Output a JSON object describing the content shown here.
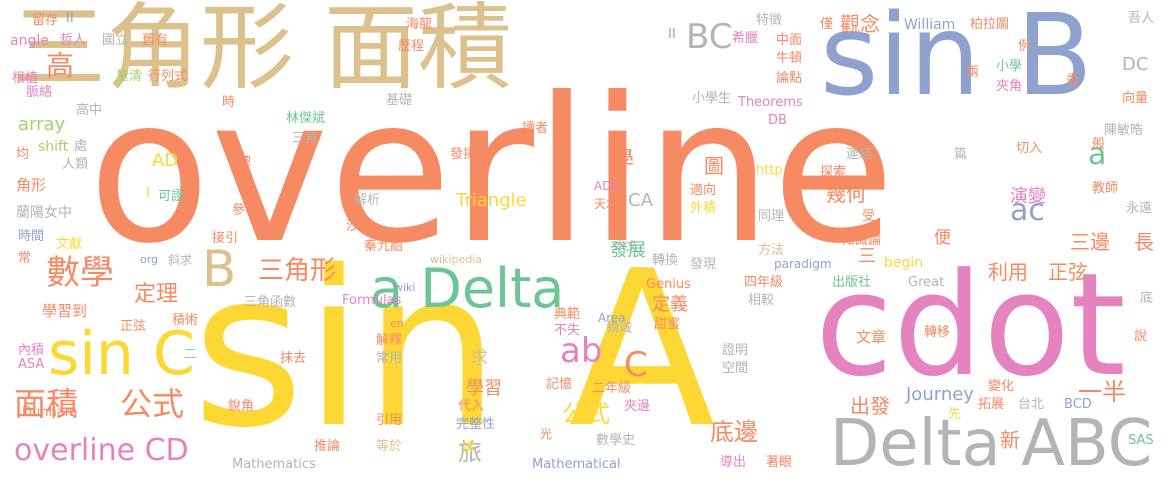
{
  "palette": {
    "orange": "#f58a63",
    "yellow": "#fdd835",
    "tan": "#dcc18c",
    "blue": "#8fa2cf",
    "pink": "#e582c0",
    "green": "#6cc596",
    "gray": "#b4b4b4",
    "lime": "#a7d168"
  },
  "words": {
    "overline": "overline",
    "sinA": "sin A",
    "cdot": "cdot",
    "sanjiaoxing_mianji": "三角形 面積",
    "sinB": "sin B",
    "deltaABC": "Delta ABC",
    "aDelta": "a Delta",
    "sinC": "sin C",
    "shuxue": "數學",
    "mianji": "面積",
    "gongshi": "公式",
    "overlineCD": "overline CD",
    "B": "B",
    "sanjiaoxing": "三角形",
    "dingli": "定理",
    "ab": "ab",
    "ac": "ac",
    "a": "a",
    "BC": "BC",
    "gao": "高",
    "didian": "底邊",
    "gongshi2": "公式",
    "banyi": "一半",
    "sanbian": "三邊",
    "chang": "長",
    "zhengxian": "正弦",
    "liyong": "利用",
    "yanbian": "演變",
    "guannian": "觀念",
    "chufa": "出發",
    "lv": "旅",
    "xue": "學",
    "tu": "圖",
    "jihe": "幾何",
    "fazhan": "發展",
    "dingyi": "定義",
    "xuexi": "學習",
    "qiu": "求",
    "C": "C",
    "Journey": "Journey",
    "Triangle": "Triangle",
    "AD": "AD",
    "CA": "CA",
    "DC": "DC",
    "array": "array",
    "shift": "shift",
    "begin": "begin",
    "William": "William",
    "DB": "DB",
    "ADC": "ADC",
    "http": "http",
    "Theorems": "Theorems",
    "paradigm": "paradigm",
    "Genius": "Genius",
    "Formulas": "Formulas",
    "Great": "Great",
    "Area": "Area",
    "wiki": "wiki",
    "wikipedia": "wikipedia",
    "en": "en",
    "org": "org",
    "Mathematics": "Mathematics",
    "Mathematical": "Mathematical",
    "Dunham": "Dunham",
    "ASA": "ASA",
    "SAS": "SAS",
    "BCD": "BCD",
    "angle": "angle",
    "I": "I",
    "II": "II",
    "II2": "II",
    "liucun": "留存",
    "zheren": "哲人",
    "guoli": "國立",
    "jiuyou": "舊有",
    "genzhi": "根植",
    "ponqing": "釐清",
    "hanglieshi": "行列式",
    "mailuo": "脈絡",
    "gaozhong": "高中",
    "jun": "均",
    "chu": "處",
    "renlei": "人類",
    "jiaoxing": "角形",
    "lanyang": "蘭陽女中",
    "shijian": "時間",
    "wenxian": "文獻",
    "chang2": "常",
    "xiexiu": "斜求",
    "xuexidao": "學習到",
    "zhengxian2": "正弦",
    "jishu": "積術",
    "neijing": "內積",
    "ruijiao": "銳角",
    "tuilun": "推論",
    "mocu": "抹去",
    "changyong": "常用",
    "jieshi": "解釋",
    "yinyong": "引用",
    "dengyu": "等於",
    "yi": "譯",
    "guang": "光",
    "wanzhengxing": "完整性",
    "daiyu": "代入",
    "jiyi": "記憶",
    "shuxueshi": "數學史",
    "dianfan": "典範",
    "bushi": "不失",
    "lingyu": "領域",
    "tianmi": "甜蜜",
    "ernianji": "二年級",
    "jiabian": "夾邊",
    "zhengming": "證明",
    "kongjian": "空間",
    "daochu": "導出",
    "zhuyan": "著眼",
    "sanjiaohanshu": "三角函數",
    "qinjiushao": "秦九韶",
    "shadi": "沙地",
    "jiexi": "解析",
    "cankao": "參考",
    "jieyin": "接引",
    "kezheng": "可證",
    "zong": "總",
    "shi": "時",
    "linjiebin": "林傑斌",
    "sanjiao": "三角",
    "jichu": "基礎",
    "fayang": "發揚",
    "lishi": "歷程",
    "haichen": "海龍",
    "duzhe": "讀者",
    "xiaoxuesheng": "小學生",
    "tedian": "特徵",
    "xila": "希臘",
    "zhongmian": "中面",
    "niudun": "牛頓",
    "lundian": "論點",
    "jin": "僅",
    "bailatu": "柏拉圖",
    "liang": "兩",
    "xiaoxue": "小學",
    "jiajiao": "夾角",
    "hua": "畫",
    "li": "例",
    "wuren": "吾人",
    "xiangliang": "向量",
    "chenminhao": "陳敏晧",
    "qieru": "切入",
    "pian": "篇",
    "ban": "般",
    "lianjie": "連結",
    "tansuo": "探索",
    "jiaoshi": "教師",
    "yongyuan": "永遠",
    "shi2": "適向",
    "tiancai": "天才",
    "waiji": "外積",
    "benwen": "本文",
    "zhuanhuan": "轉換",
    "faxian": "發現",
    "tongli": "同理",
    "fangfa": "方法",
    "sinianji": "四年級",
    "chubanshe": "出版社",
    "xiangjiao": "相較",
    "zhishilun": "知識論",
    "shou": "受",
    "bian": "便",
    "san": "三",
    "wenzhang": "文章",
    "zhuanyi": "轉移",
    "bianhua": "變化",
    "tuozhan": "拓展",
    "taibei": "台北",
    "xin": "新",
    "shuo": "說",
    "di": "底",
    "xian": "先",
    "er": "二"
  }
}
